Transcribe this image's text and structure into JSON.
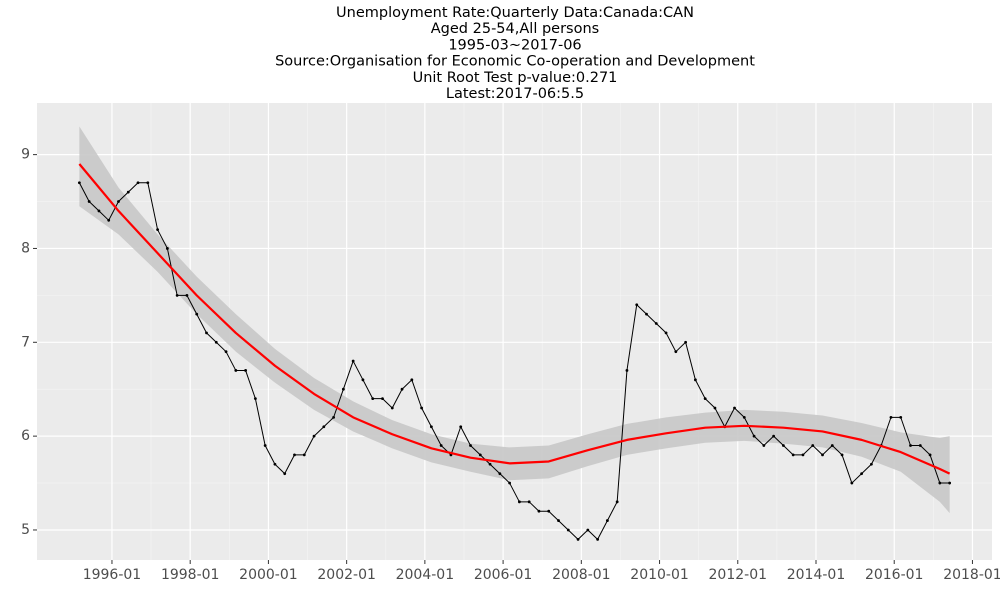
{
  "chart_data": {
    "type": "line",
    "title": [
      "Unemployment Rate:Quarterly Data:Canada:CAN",
      "Aged 25-54,All persons",
      "1995-03~2017-06",
      "Source:Organisation for Economic Co-operation and Development",
      "Unit Root Test p-value:0.271",
      "Latest:2017-06:5.5"
    ],
    "x": [
      "1995-03",
      "1995-06",
      "1995-09",
      "1995-12",
      "1996-03",
      "1996-06",
      "1996-09",
      "1996-12",
      "1997-03",
      "1997-06",
      "1997-09",
      "1997-12",
      "1998-03",
      "1998-06",
      "1998-09",
      "1998-12",
      "1999-03",
      "1999-06",
      "1999-09",
      "1999-12",
      "2000-03",
      "2000-06",
      "2000-09",
      "2000-12",
      "2001-03",
      "2001-06",
      "2001-09",
      "2001-12",
      "2002-03",
      "2002-06",
      "2002-09",
      "2002-12",
      "2003-03",
      "2003-06",
      "2003-09",
      "2003-12",
      "2004-03",
      "2004-06",
      "2004-09",
      "2004-12",
      "2005-03",
      "2005-06",
      "2005-09",
      "2005-12",
      "2006-03",
      "2006-06",
      "2006-09",
      "2006-12",
      "2007-03",
      "2007-06",
      "2007-09",
      "2007-12",
      "2008-03",
      "2008-06",
      "2008-09",
      "2008-12",
      "2009-03",
      "2009-06",
      "2009-09",
      "2009-12",
      "2010-03",
      "2010-06",
      "2010-09",
      "2010-12",
      "2011-03",
      "2011-06",
      "2011-09",
      "2011-12",
      "2012-03",
      "2012-06",
      "2012-09",
      "2012-12",
      "2013-03",
      "2013-06",
      "2013-09",
      "2013-12",
      "2014-03",
      "2014-06",
      "2014-09",
      "2014-12",
      "2015-03",
      "2015-06",
      "2015-09",
      "2015-12",
      "2016-03",
      "2016-06",
      "2016-09",
      "2016-12",
      "2017-03",
      "2017-06"
    ],
    "series": [
      {
        "color": "#000000",
        "values": [
          8.7,
          8.5,
          8.4,
          8.3,
          8.5,
          8.6,
          8.7,
          8.7,
          8.2,
          8.0,
          7.5,
          7.5,
          7.3,
          7.1,
          7.0,
          6.9,
          6.7,
          6.7,
          6.4,
          5.9,
          5.7,
          5.6,
          5.8,
          5.8,
          6.0,
          6.1,
          6.2,
          6.5,
          6.8,
          6.6,
          6.4,
          6.4,
          6.3,
          6.5,
          6.6,
          6.3,
          6.1,
          5.9,
          5.8,
          6.1,
          5.9,
          5.8,
          5.7,
          5.6,
          5.5,
          5.3,
          5.3,
          5.2,
          5.2,
          5.1,
          5.0,
          4.9,
          5.0,
          4.9,
          5.1,
          5.3,
          6.7,
          7.4,
          7.3,
          7.2,
          7.1,
          6.9,
          7.0,
          6.6,
          6.4,
          6.3,
          6.1,
          6.3,
          6.2,
          6.0,
          5.9,
          6.0,
          5.9,
          5.8,
          5.8,
          5.9,
          5.8,
          5.9,
          5.8,
          5.5,
          5.6,
          5.7,
          5.9,
          6.2,
          6.2,
          5.9,
          5.9,
          5.8,
          5.5,
          5.5
        ]
      }
    ],
    "smooth": {
      "color": "#ff0000",
      "band_color": "#c8c8c8",
      "x": [
        "1995-03",
        "1996-03",
        "1997-03",
        "1998-03",
        "1999-03",
        "2000-03",
        "2001-03",
        "2002-03",
        "2003-03",
        "2004-03",
        "2005-03",
        "2006-03",
        "2007-03",
        "2008-03",
        "2009-03",
        "2010-03",
        "2011-03",
        "2012-03",
        "2013-03",
        "2014-03",
        "2015-03",
        "2016-03",
        "2017-03",
        "2017-06"
      ],
      "values": [
        8.9,
        8.4,
        7.95,
        7.5,
        7.1,
        6.75,
        6.45,
        6.2,
        6.02,
        5.87,
        5.77,
        5.71,
        5.73,
        5.85,
        5.96,
        6.03,
        6.09,
        6.11,
        6.09,
        6.05,
        5.96,
        5.83,
        5.65,
        5.6
      ],
      "lower": [
        8.45,
        8.15,
        7.75,
        7.3,
        6.9,
        6.57,
        6.28,
        6.05,
        5.87,
        5.72,
        5.62,
        5.53,
        5.55,
        5.68,
        5.8,
        5.87,
        5.93,
        5.95,
        5.92,
        5.88,
        5.78,
        5.62,
        5.3,
        5.18
      ],
      "upper": [
        9.3,
        8.65,
        8.15,
        7.7,
        7.3,
        6.93,
        6.62,
        6.37,
        6.17,
        6.02,
        5.92,
        5.88,
        5.9,
        6.02,
        6.13,
        6.2,
        6.25,
        6.28,
        6.26,
        6.22,
        6.14,
        6.04,
        5.98,
        6.0
      ]
    },
    "xlim": [
      "1994-02",
      "2018-07"
    ],
    "xticks": [
      "1996-01",
      "1998-01",
      "2000-01",
      "2002-01",
      "2004-01",
      "2006-01",
      "2008-01",
      "2010-01",
      "2012-01",
      "2014-01",
      "2016-01",
      "2018-01"
    ],
    "ylim": [
      4.68,
      9.55
    ],
    "yticks": [
      5,
      6,
      7,
      8,
      9
    ],
    "grid": true
  }
}
